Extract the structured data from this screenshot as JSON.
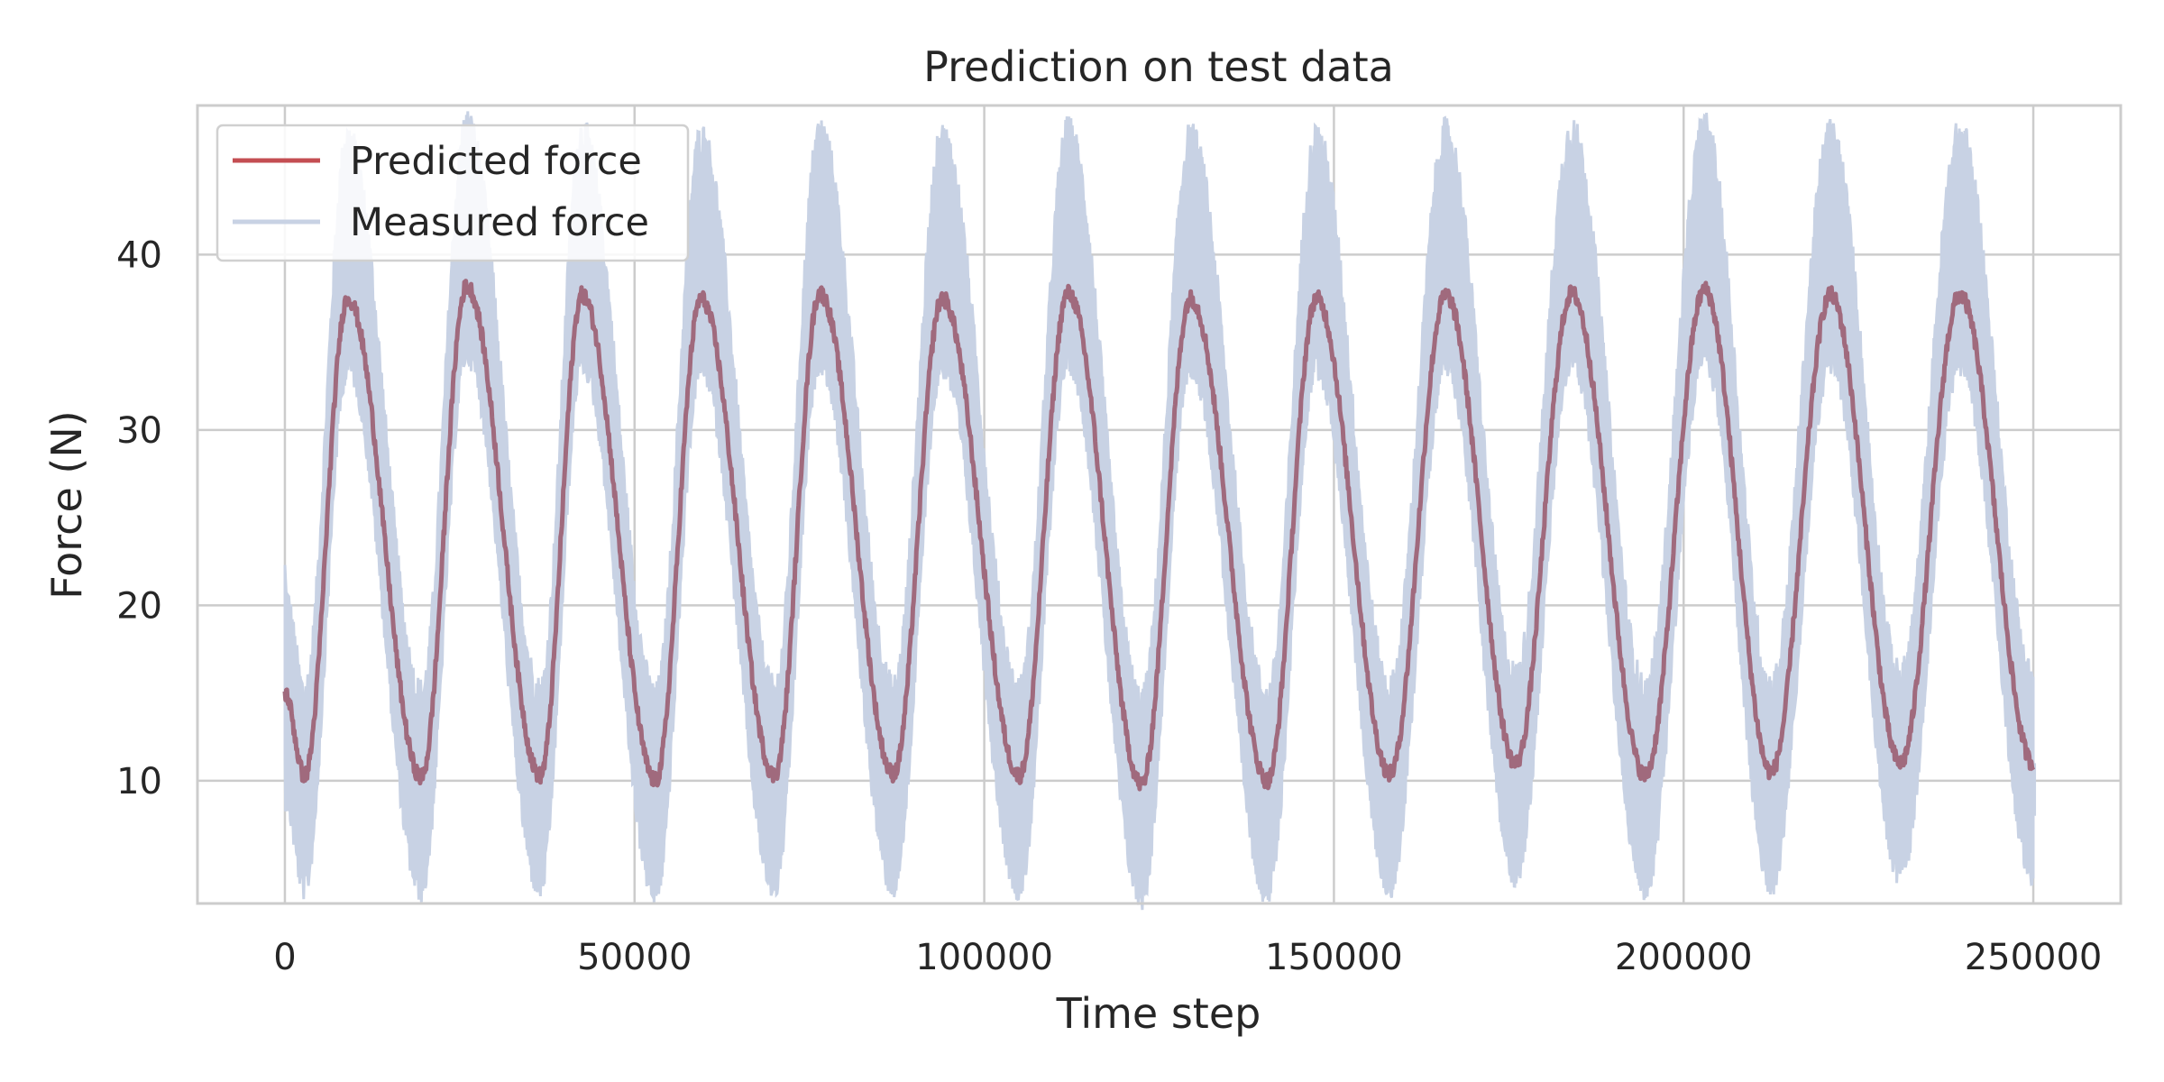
{
  "chart_data": {
    "type": "line",
    "title": "Prediction on test data",
    "xlabel": "Time step",
    "ylabel": "Force (N)",
    "xlim": [
      -12500,
      262500
    ],
    "ylim": [
      3,
      48.5
    ],
    "xticks": [
      0,
      50000,
      100000,
      150000,
      200000,
      250000
    ],
    "xtick_labels": [
      "0",
      "50000",
      "100000",
      "150000",
      "200000",
      "250000"
    ],
    "yticks": [
      10,
      20,
      30,
      40
    ],
    "ytick_labels": [
      "10",
      "20",
      "30",
      "40"
    ],
    "grid": true,
    "legend_position": "top-left",
    "x_range": [
      0,
      250000
    ],
    "cycle_period_steps": 18300,
    "series": [
      {
        "name": "Predicted force",
        "color": "#c44e52",
        "line_color": "#a06a7d",
        "envelope": {
          "peaks": [
            {
              "x": 9000,
              "y": 37.5
            },
            {
              "x": 26000,
              "y": 38.2
            },
            {
              "x": 42500,
              "y": 37.7
            },
            {
              "x": 59500,
              "y": 37.5
            },
            {
              "x": 76500,
              "y": 37.8
            },
            {
              "x": 94000,
              "y": 37.5
            },
            {
              "x": 112000,
              "y": 37.8
            },
            {
              "x": 129500,
              "y": 37.5
            },
            {
              "x": 147500,
              "y": 37.5
            },
            {
              "x": 166000,
              "y": 37.7
            },
            {
              "x": 184000,
              "y": 37.8
            },
            {
              "x": 203000,
              "y": 38.0
            },
            {
              "x": 221000,
              "y": 37.7
            },
            {
              "x": 239500,
              "y": 37.7
            }
          ],
          "troughs": [
            {
              "x": 0,
              "y": 15.0
            },
            {
              "x": 2800,
              "y": 10.3
            },
            {
              "x": 19500,
              "y": 10.2
            },
            {
              "x": 36500,
              "y": 10.3
            },
            {
              "x": 53000,
              "y": 10.0
            },
            {
              "x": 70000,
              "y": 10.3
            },
            {
              "x": 87000,
              "y": 10.4
            },
            {
              "x": 105000,
              "y": 10.3
            },
            {
              "x": 122500,
              "y": 9.8
            },
            {
              "x": 140500,
              "y": 10.0
            },
            {
              "x": 158000,
              "y": 10.4
            },
            {
              "x": 176000,
              "y": 11.0
            },
            {
              "x": 194500,
              "y": 10.3
            },
            {
              "x": 212500,
              "y": 10.5
            },
            {
              "x": 231000,
              "y": 11.0
            },
            {
              "x": 250000,
              "y": 11.0
            }
          ]
        }
      },
      {
        "name": "Measured force",
        "color": "#c8d2e4",
        "envelope": {
          "peak_max": [
            44.5,
            44.6,
            44.5,
            44.3,
            44.6,
            44.3,
            44.6,
            44.5,
            45.0,
            45.4,
            45.8,
            45.1,
            44.4,
            43.3
          ],
          "trough_min": [
            7.0,
            5.0,
            6.5,
            6.5,
            6.7,
            6.0,
            6.5,
            7.0,
            5.8,
            7.5,
            7.0,
            7.0,
            7.3,
            7.0,
            8.0
          ]
        }
      }
    ]
  }
}
